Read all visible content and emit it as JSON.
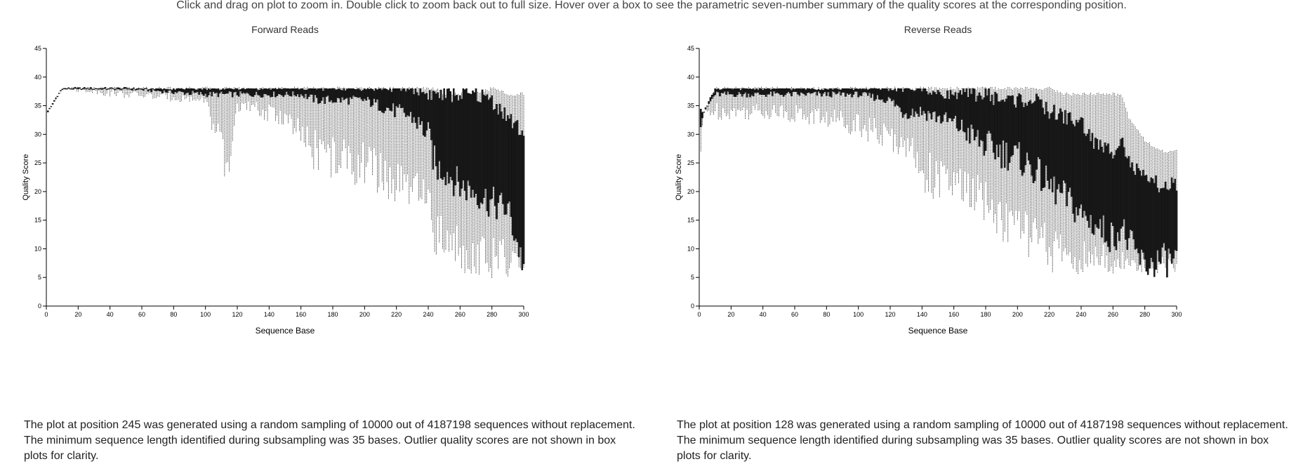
{
  "instructions": "Click and drag on plot to zoom in. Double click to zoom back out to full size. Hover over a box to see the parametric seven-number summary of the quality scores at the corresponding position.",
  "charts": {
    "forward": {
      "note": "The plot at position 245 was generated using a random sampling of 10000 out of 4187198 sequences without replacement. The minimum sequence length identified during subsampling was 35 bases. Outlier quality scores are not shown in box plots for clarity."
    },
    "reverse": {
      "note": "The plot at position 128 was generated using a random sampling of 10000 out of 4187198 sequences without replacement. The minimum sequence length identified during subsampling was 35 bases. Outlier quality scores are not shown in box plots for clarity."
    }
  },
  "chart_data": [
    {
      "type": "box",
      "title": "Forward Reads",
      "xlabel": "Sequence Base",
      "ylabel": "Quality Score",
      "xlim": [
        0,
        300
      ],
      "ylim": [
        0,
        45
      ],
      "xticks": [
        0,
        20,
        40,
        60,
        80,
        100,
        120,
        140,
        160,
        180,
        200,
        220,
        240,
        260,
        280,
        300
      ],
      "yticks": [
        0,
        5,
        10,
        15,
        20,
        25,
        30,
        35,
        40,
        45
      ],
      "key_positions": [
        1,
        10,
        50,
        100,
        114,
        120,
        150,
        160,
        170,
        180,
        190,
        200,
        210,
        220,
        230,
        240,
        245,
        250,
        260,
        270,
        280,
        290,
        300
      ],
      "q1": [
        34,
        38,
        38,
        37,
        37,
        37,
        37,
        37,
        36,
        36,
        36,
        36,
        35,
        34,
        33,
        30,
        24,
        24,
        21,
        20,
        18,
        17,
        7
      ],
      "q3": [
        34,
        38,
        38,
        38,
        38,
        38,
        38,
        38,
        38,
        38,
        38,
        38,
        38,
        38,
        38,
        37,
        37,
        37,
        37,
        37,
        36,
        33,
        30
      ],
      "whislo": [
        34,
        38,
        37,
        36,
        23,
        35,
        33,
        29,
        27,
        26,
        25,
        25,
        23,
        21,
        20,
        18,
        12,
        12,
        10,
        9,
        8,
        8,
        7
      ],
      "whishi": [
        34,
        38,
        38,
        38,
        38,
        38,
        38,
        38,
        38,
        38,
        38,
        38,
        38,
        38,
        38,
        38,
        38,
        37,
        37,
        37,
        38,
        37,
        37
      ]
    },
    {
      "type": "box",
      "title": "Reverse Reads",
      "xlabel": "Sequence Base",
      "ylabel": "Quality Score",
      "xlim": [
        0,
        300
      ],
      "ylim": [
        0,
        45
      ],
      "xticks": [
        0,
        20,
        40,
        60,
        80,
        100,
        120,
        140,
        160,
        180,
        200,
        220,
        240,
        260,
        280,
        300
      ],
      "yticks": [
        0,
        5,
        10,
        15,
        20,
        25,
        30,
        35,
        40,
        45
      ],
      "key_positions": [
        1,
        3,
        10,
        50,
        100,
        120,
        128,
        140,
        150,
        160,
        170,
        180,
        190,
        200,
        210,
        220,
        230,
        240,
        250,
        260,
        265,
        270,
        280,
        290,
        300
      ],
      "q1": [
        32,
        34,
        37,
        37,
        37,
        36,
        34,
        34,
        33,
        32,
        30,
        28,
        27,
        26,
        24,
        21,
        19,
        16,
        14,
        12,
        14,
        11,
        7,
        8,
        8
      ],
      "q3": [
        34,
        34,
        38,
        38,
        38,
        38,
        38,
        38,
        37,
        37,
        37,
        37,
        36,
        36,
        36,
        34,
        33,
        32,
        28,
        27,
        30,
        25,
        22,
        21,
        21
      ],
      "whislo": [
        27,
        34,
        34,
        34,
        32,
        29,
        29,
        24,
        22,
        21,
        20,
        18,
        15,
        14,
        12,
        10,
        9,
        8,
        8,
        7,
        8,
        7,
        7,
        7,
        7
      ],
      "whishi": [
        34,
        34,
        38,
        38,
        38,
        38,
        38,
        38,
        38,
        38,
        38,
        38,
        38,
        38,
        38,
        38,
        37,
        37,
        37,
        37,
        37,
        33,
        29,
        27,
        27
      ]
    }
  ]
}
